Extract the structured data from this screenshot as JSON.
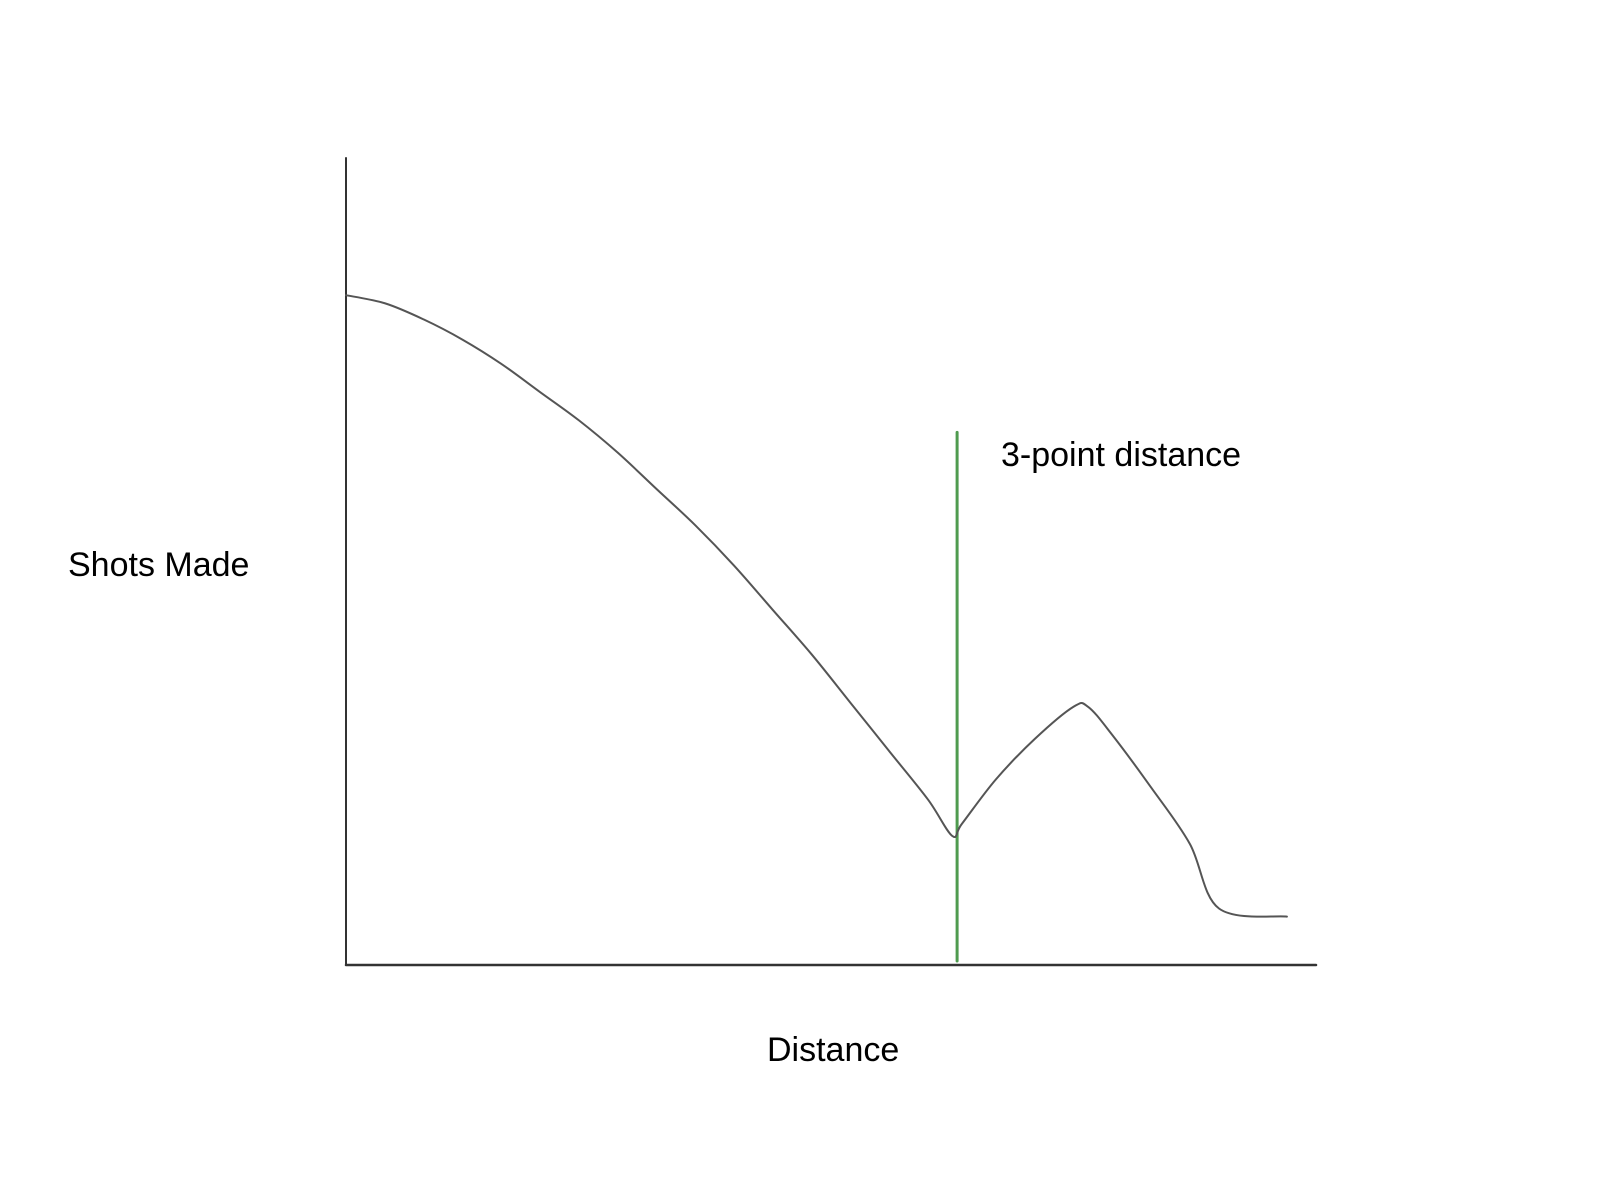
{
  "chart_data": {
    "type": "line",
    "title": "",
    "xlabel": "Distance",
    "ylabel": "Shots Made",
    "xlim": [
      0,
      100
    ],
    "ylim": [
      0,
      100
    ],
    "grid": false,
    "legend": "none",
    "series": [
      {
        "color": "#555555",
        "x": [
          0,
          4,
          8,
          12,
          16,
          20,
          24,
          28,
          32,
          36,
          40,
          44,
          48,
          52,
          56,
          60,
          62.5,
          63.5,
          67,
          71,
          75,
          76.5,
          79,
          83,
          87,
          90,
          97
        ],
        "y": [
          83,
          82,
          80,
          77.5,
          74.5,
          71,
          67.5,
          63.5,
          59,
          54.5,
          49.5,
          44,
          38.5,
          32.5,
          26.5,
          20.5,
          16,
          17.5,
          23,
          28,
          32,
          32,
          28.5,
          22,
          15,
          7,
          6
        ]
      }
    ],
    "annotations": [
      {
        "text": "3-point distance",
        "type": "vertical-line",
        "x": 63,
        "y_range": [
          0.5,
          66
        ],
        "color": "#4f9b4f"
      }
    ]
  }
}
